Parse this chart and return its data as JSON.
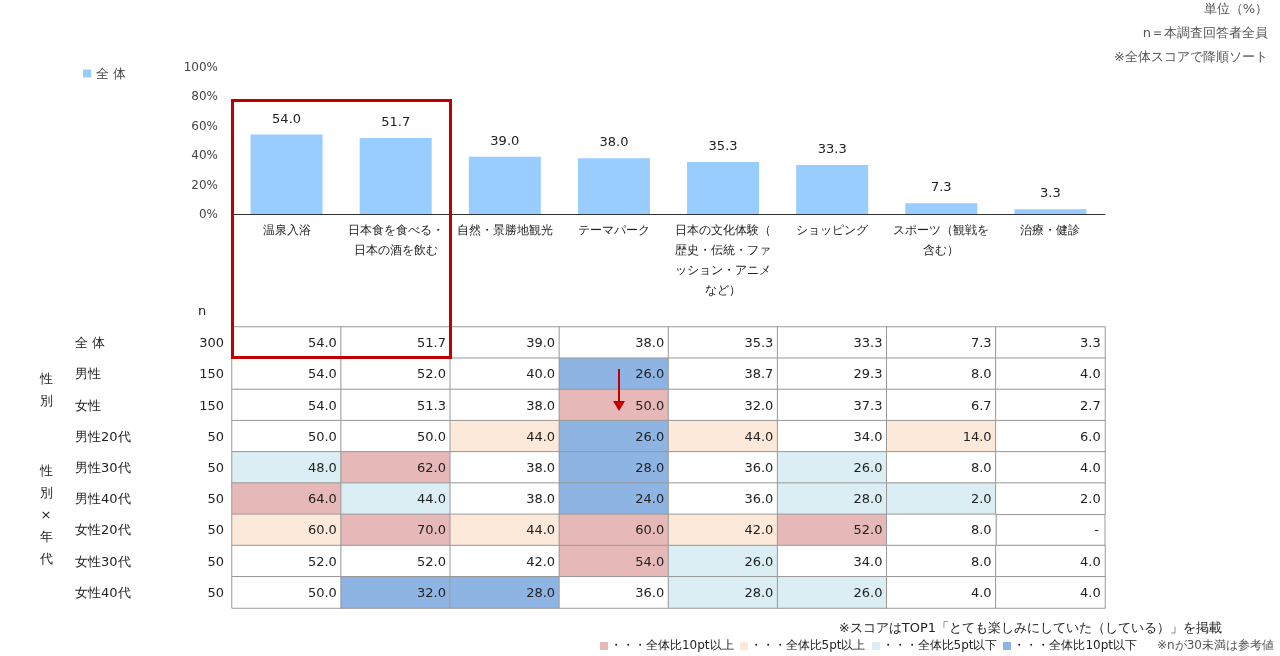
{
  "chart_data": [
    {
      "type": "bar",
      "categories": [
        "温泉入浴",
        "日本食を食べる・日本の酒を飲む",
        "自然・景勝地観光",
        "テーマパーク",
        "日本の文化体験（歴史・伝統・ファッション・アニメなど）",
        "ショッピング",
        "スポーツ（観戦を含む）",
        "治療・健診"
      ],
      "series": [
        {
          "name": "全 体",
          "color": "#99ccff",
          "values": [
            54.0,
            51.7,
            39.0,
            38.0,
            35.3,
            33.3,
            7.3,
            3.3
          ],
          "value_labels": [
            "54.0",
            "51.7",
            "39.0",
            "38.0",
            "35.3",
            "33.3",
            "7.3",
            "3.3"
          ]
        }
      ],
      "ylim": [
        0,
        100
      ],
      "yticks": [
        {
          "value": 0,
          "label": "0%"
        },
        {
          "value": 20,
          "label": "20%"
        },
        {
          "value": 40,
          "label": "40%"
        },
        {
          "value": 60,
          "label": "60%"
        },
        {
          "value": 80,
          "label": "80%"
        },
        {
          "value": 100,
          "label": "100%"
        }
      ],
      "grid": false,
      "legend": "top left",
      "annotations": [
        "単位（%）",
        "n＝本調査回答者全員",
        "※全体スコアで降順ソート"
      ]
    },
    {
      "type": "heatmap",
      "categories": [
        "温泉入浴",
        "日本食を食べる・日本の酒を飲む",
        "自然・景勝地観光",
        "テーマパーク",
        "日本の文化体験（歴史・伝統・ファッション・アニメなど）",
        "ショッピング",
        "スポーツ（観戦を含む）",
        "治療・健診"
      ],
      "y_categories": [
        "全 体",
        "男性",
        "女性",
        "男性20代",
        "男性30代",
        "男性40代",
        "女性20代",
        "女性30代",
        "女性40代"
      ],
      "y2_categories": [
        "300",
        "150",
        "150",
        "50",
        "50",
        "50",
        "50",
        "50",
        "50"
      ],
      "y2label": "n",
      "tick_labels": "y",
      "cells": [
        [
          54.0,
          51.7,
          39.0,
          38.0,
          35.3,
          33.3,
          7.3,
          3.3
        ],
        [
          54.0,
          52.0,
          40.0,
          26.0,
          38.7,
          29.3,
          8.0,
          4.0
        ],
        [
          54.0,
          51.3,
          38.0,
          50.0,
          32.0,
          37.3,
          6.7,
          2.7
        ],
        [
          50.0,
          50.0,
          44.0,
          26.0,
          44.0,
          34.0,
          14.0,
          6.0
        ],
        [
          48.0,
          62.0,
          38.0,
          28.0,
          36.0,
          26.0,
          8.0,
          4.0
        ],
        [
          64.0,
          44.0,
          38.0,
          24.0,
          36.0,
          28.0,
          2.0,
          2.0
        ],
        [
          60.0,
          70.0,
          44.0,
          60.0,
          42.0,
          52.0,
          8.0,
          null
        ],
        [
          52.0,
          52.0,
          42.0,
          54.0,
          26.0,
          34.0,
          8.0,
          4.0
        ],
        [
          50.0,
          32.0,
          28.0,
          36.0,
          28.0,
          26.0,
          4.0,
          4.0
        ]
      ],
      "cell_labels": [
        [
          "54.0",
          "51.7",
          "39.0",
          "38.0",
          "35.3",
          "33.3",
          "7.3",
          "3.3"
        ],
        [
          "54.0",
          "52.0",
          "40.0",
          "26.0",
          "38.7",
          "29.3",
          "8.0",
          "4.0"
        ],
        [
          "54.0",
          "51.3",
          "38.0",
          "50.0",
          "32.0",
          "37.3",
          "6.7",
          "2.7"
        ],
        [
          "50.0",
          "50.0",
          "44.0",
          "26.0",
          "44.0",
          "34.0",
          "14.0",
          "6.0"
        ],
        [
          "48.0",
          "62.0",
          "38.0",
          "28.0",
          "36.0",
          "26.0",
          "8.0",
          "4.0"
        ],
        [
          "64.0",
          "44.0",
          "38.0",
          "24.0",
          "36.0",
          "28.0",
          "2.0",
          "2.0"
        ],
        [
          "60.0",
          "70.0",
          "44.0",
          "60.0",
          "42.0",
          "52.0",
          "8.0",
          "-"
        ],
        [
          "52.0",
          "52.0",
          "42.0",
          "54.0",
          "26.0",
          "34.0",
          "8.0",
          "4.0"
        ],
        [
          "50.0",
          "32.0",
          "28.0",
          "36.0",
          "28.0",
          "26.0",
          "4.0",
          "4.0"
        ]
      ],
      "annotations": [
        "※スコアはTOP1「とても楽しみにしていた（している）」を掲載",
        "・・・全体比10pt以上",
        "・・・全体比5pt以上",
        "・・・全体比5pt以下",
        "・・・全体比10pt以下",
        "※nが30未満は参考値",
        "性別",
        "性別×年代"
      ]
    }
  ]
}
